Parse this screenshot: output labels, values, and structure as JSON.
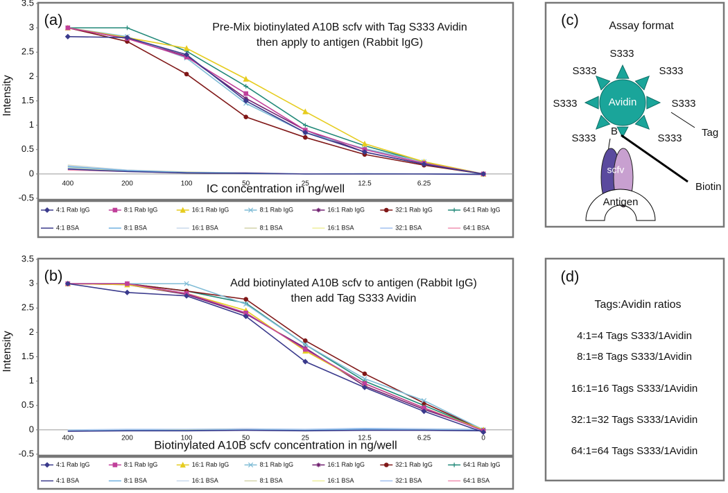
{
  "chart_data": [
    {
      "type": "line",
      "panel_label": "(a)",
      "title": [
        "Pre-Mix biotinylated A10B scfv with Tag S333 Avidin",
        "then apply to antigen (Rabbit IgG)"
      ],
      "x_label": "IC concentration in ng/well",
      "y_label": "Intensity",
      "categories": [
        "400",
        "200",
        "100",
        "50",
        "25",
        "12.5",
        "6.25",
        null
      ],
      "ylim": [
        -0.5,
        3.5
      ],
      "yticks": [
        -0.5,
        0,
        0.5,
        1,
        1.5,
        2,
        2.5,
        3,
        3.5
      ],
      "grid": false,
      "series": [
        {
          "name": "4:1 Rab IgG",
          "color": "#3a3a8c",
          "marker": "diamond",
          "values": [
            2.82,
            2.8,
            2.45,
            1.5,
            0.85,
            0.45,
            0.2,
            0
          ]
        },
        {
          "name": "8:1 Rab IgG",
          "color": "#c0409a",
          "marker": "square",
          "values": [
            3.0,
            2.78,
            2.4,
            1.65,
            0.9,
            0.5,
            0.22,
            0
          ]
        },
        {
          "name": "16:1 Rab IgG",
          "color": "#e6cc1e",
          "marker": "triangle",
          "values": [
            3.0,
            2.8,
            2.58,
            1.95,
            1.28,
            0.62,
            0.25,
            0
          ]
        },
        {
          "name": "8:1 Rab IgG",
          "color": "#7fbcd6",
          "marker": "x",
          "values": [
            3.0,
            2.82,
            2.38,
            1.45,
            0.85,
            0.52,
            0.25,
            0
          ]
        },
        {
          "name": "16:1 Rab IgG",
          "color": "#702070",
          "marker": "star",
          "values": [
            3.0,
            2.78,
            2.42,
            1.55,
            0.9,
            0.45,
            0.2,
            0
          ]
        },
        {
          "name": "32:1 Rab IgG",
          "color": "#801818",
          "marker": "circle",
          "values": [
            3.0,
            2.72,
            2.05,
            1.17,
            0.75,
            0.4,
            0.18,
            0
          ]
        },
        {
          "name": "64:1 Rab IgG",
          "color": "#208878",
          "marker": "plus",
          "values": [
            3.0,
            3.0,
            2.52,
            1.8,
            1.0,
            0.58,
            0.24,
            0
          ]
        },
        {
          "name": "4:1 BSA",
          "color": "#3a3a8c",
          "marker": "none",
          "values": [
            0.1,
            0.05,
            0.02,
            0.01,
            0,
            0,
            0,
            -0.01
          ]
        },
        {
          "name": "8:1 BSA",
          "color": "#70b0e0",
          "marker": "none",
          "values": [
            0.15,
            0.07,
            0.03,
            0.02,
            0,
            0,
            0,
            0
          ]
        },
        {
          "name": "16:1 BSA",
          "color": "#c8d8ec",
          "marker": "none",
          "values": [
            0.17,
            0.08,
            0.03,
            0.02,
            0,
            0.01,
            0,
            0
          ]
        },
        {
          "name": "8:1 BSA",
          "color": "#d4d4aa",
          "marker": "none",
          "values": [
            0.18,
            0.08,
            0.04,
            0.02,
            0,
            0,
            0,
            0
          ]
        },
        {
          "name": "16:1 BSA",
          "color": "#eeee9c",
          "marker": "none",
          "values": [
            0.14,
            0.06,
            0.02,
            0.01,
            0,
            0,
            0,
            0
          ]
        },
        {
          "name": "32:1 BSA",
          "color": "#a0c0f0",
          "marker": "none",
          "values": [
            0.12,
            0.06,
            0.02,
            0.02,
            0,
            0.01,
            0,
            0
          ]
        },
        {
          "name": "64:1 BSA",
          "color": "#f090b0",
          "marker": "none",
          "values": [
            0.08,
            0.05,
            0.02,
            0.03,
            0,
            0,
            0,
            -0.01
          ]
        }
      ]
    },
    {
      "type": "line",
      "panel_label": "(b)",
      "title": [
        "Add biotinylated A10B scfv to antigen (Rabbit IgG)",
        "then add Tag S333 Avidin"
      ],
      "x_label": "Biotinylated A10B scfv concentration in ng/well",
      "y_label": "Intensity",
      "categories": [
        "400",
        "200",
        "100",
        "50",
        "25",
        "12.5",
        "6.25",
        "0"
      ],
      "ylim": [
        -0.5,
        3.5
      ],
      "yticks": [
        -0.5,
        0,
        0.5,
        1,
        1.5,
        2,
        2.5,
        3,
        3.5
      ],
      "grid": false,
      "series": [
        {
          "name": "4:1 Rab IgG",
          "color": "#3a3a8c",
          "marker": "diamond",
          "values": [
            3.0,
            2.82,
            2.75,
            2.33,
            1.4,
            0.87,
            0.38,
            -0.05
          ]
        },
        {
          "name": "8:1 Rab IgG",
          "color": "#c0409a",
          "marker": "square",
          "values": [
            3.0,
            3.0,
            2.8,
            2.4,
            1.65,
            0.95,
            0.45,
            -0.02
          ]
        },
        {
          "name": "16:1 Rab IgG",
          "color": "#e6cc1e",
          "marker": "triangle",
          "values": [
            3.0,
            2.98,
            2.8,
            2.45,
            1.62,
            0.95,
            0.45,
            0
          ]
        },
        {
          "name": "8:1 Rab IgG",
          "color": "#7fbcd6",
          "marker": "x",
          "values": [
            3.0,
            3.0,
            3.0,
            2.58,
            1.75,
            1.05,
            0.6,
            0
          ]
        },
        {
          "name": "16:1 Rab IgG",
          "color": "#702070",
          "marker": "star",
          "values": [
            3.0,
            2.98,
            2.78,
            2.38,
            1.68,
            0.9,
            0.42,
            0
          ]
        },
        {
          "name": "32:1 Rab IgG",
          "color": "#801818",
          "marker": "circle",
          "values": [
            3.0,
            3.0,
            2.85,
            2.68,
            1.83,
            1.15,
            0.55,
            0
          ]
        },
        {
          "name": "64:1 Rab IgG",
          "color": "#208878",
          "marker": "plus",
          "values": [
            3.0,
            3.0,
            2.85,
            2.6,
            1.75,
            1.0,
            0.5,
            0
          ]
        },
        {
          "name": "4:1 BSA",
          "color": "#3a3a8c",
          "marker": "none",
          "values": [
            -0.03,
            -0.02,
            -0.02,
            -0.01,
            -0.02,
            -0.01,
            -0.01,
            -0.02
          ]
        },
        {
          "name": "8:1 BSA",
          "color": "#70b0e0",
          "marker": "none",
          "values": [
            -0.02,
            -0.01,
            -0.01,
            0,
            -0.01,
            0.01,
            0,
            -0.01
          ]
        },
        {
          "name": "16:1 BSA",
          "color": "#c8d8ec",
          "marker": "none",
          "values": [
            -0.01,
            0,
            -0.01,
            0.01,
            0,
            0.01,
            0.01,
            0
          ]
        },
        {
          "name": "8:1 BSA",
          "color": "#d4d4aa",
          "marker": "none",
          "values": [
            -0.02,
            -0.01,
            0,
            0.01,
            -0.01,
            0,
            0.01,
            0
          ]
        },
        {
          "name": "16:1 BSA",
          "color": "#eeee9c",
          "marker": "none",
          "values": [
            -0.01,
            -0.01,
            0,
            0,
            -0.01,
            0,
            0,
            0
          ]
        },
        {
          "name": "32:1 BSA",
          "color": "#a0c0f0",
          "marker": "none",
          "values": [
            0,
            0.01,
            0.01,
            0.02,
            0.01,
            0.03,
            0.02,
            0.01
          ]
        },
        {
          "name": "64:1 BSA",
          "color": "#f090b0",
          "marker": "none",
          "values": [
            -0.01,
            0,
            0,
            0.02,
            0,
            0.01,
            0.01,
            0
          ]
        }
      ]
    }
  ],
  "assay_format": {
    "panel_label": "(c)",
    "title": "Assay format",
    "tags": [
      "S333",
      "S333",
      "S333",
      "S333",
      "S333",
      "S333",
      "S333"
    ],
    "avidin": "Avidin",
    "tag": "Tag",
    "biotin_letter": "B",
    "biotin": "Biotin",
    "scfv": "scfv",
    "antigen": "Antigen"
  },
  "ratios": {
    "panel_label": "(d)",
    "title": "Tags:Avidin ratios",
    "lines": [
      "4:1=4  Tags S333/1Avidin",
      "8:1=8 Tags S333/1Avidin",
      "16:1=16 Tags S333/1Avidin",
      "32:1=32 Tags S333/1Avidin",
      "64:1=64 Tags S333/1Avidin"
    ]
  }
}
